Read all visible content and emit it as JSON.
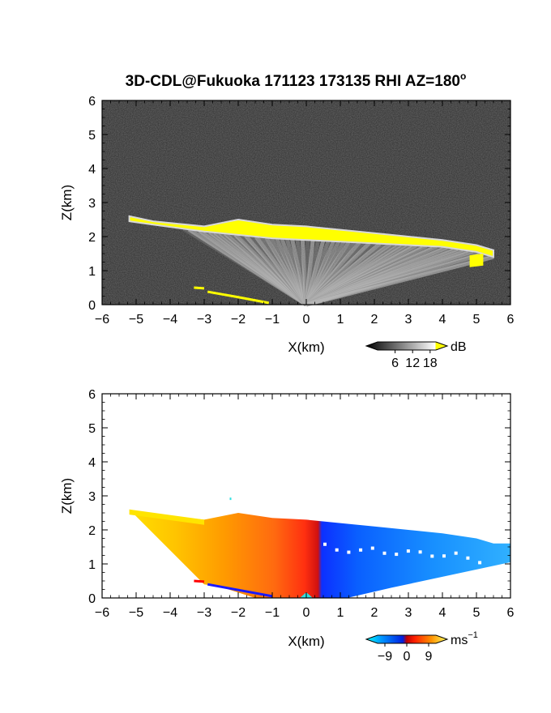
{
  "title": "3D-CDL@Fukuoka 171123 173135 RHI AZ=180",
  "title_degree": "o",
  "chart_data": [
    {
      "type": "heatmap",
      "quantity": "backscatter intensity",
      "xlabel": "X(km)",
      "ylabel": "Z(km)",
      "xlim": [
        -6,
        6
      ],
      "ylim": [
        0,
        6
      ],
      "xticks": [
        "−6",
        "−5",
        "−4",
        "−3",
        "−2",
        "−1",
        "0",
        "1",
        "2",
        "3",
        "4",
        "5",
        "6"
      ],
      "yticks": [
        "0",
        "1",
        "2",
        "3",
        "4",
        "5",
        "6"
      ],
      "background": "#2a2a2a",
      "highlight_color": "#ffff00",
      "colorbar": {
        "unit": "dB",
        "ticks": [
          "6",
          "12",
          "18"
        ],
        "range": [
          0,
          20
        ]
      },
      "cloud_base_km": [
        [
          -5.2,
          2.45
        ],
        [
          -4.5,
          2.35
        ],
        [
          -3,
          2.15
        ],
        [
          -2,
          2.05
        ],
        [
          -1,
          1.95
        ],
        [
          0,
          1.9
        ],
        [
          1,
          1.85
        ],
        [
          2,
          1.8
        ],
        [
          3,
          1.75
        ],
        [
          4,
          1.7
        ],
        [
          5,
          1.55
        ],
        [
          5.5,
          1.4
        ]
      ],
      "cloud_top_km": [
        [
          -5.2,
          2.6
        ],
        [
          -4.5,
          2.45
        ],
        [
          -3,
          2.3
        ],
        [
          -2,
          2.5
        ],
        [
          -1,
          2.35
        ],
        [
          0,
          2.3
        ],
        [
          1,
          2.2
        ],
        [
          2,
          2.1
        ],
        [
          3,
          2.0
        ],
        [
          4,
          1.9
        ],
        [
          5,
          1.75
        ],
        [
          5.5,
          1.6
        ]
      ]
    },
    {
      "type": "heatmap",
      "quantity": "radial velocity",
      "xlabel": "X(km)",
      "ylabel": "Z(km)",
      "xlim": [
        -6,
        6
      ],
      "ylim": [
        0,
        6
      ],
      "xticks": [
        "−6",
        "−5",
        "−4",
        "−3",
        "−2",
        "−1",
        "0",
        "1",
        "2",
        "3",
        "4",
        "5",
        "6"
      ],
      "yticks": [
        "0",
        "1",
        "2",
        "3",
        "4",
        "5",
        "6"
      ],
      "colorbar": {
        "unit": "ms",
        "unit_exp": "−1",
        "ticks": [
          "−9",
          "0",
          "9"
        ],
        "range": [
          -12,
          12
        ]
      },
      "velocity_regions": [
        {
          "x_range": [
            -5.2,
            -3
          ],
          "value": 9
        },
        {
          "x_range": [
            -3,
            -1
          ],
          "value": 6
        },
        {
          "x_range": [
            -1,
            0
          ],
          "value": 3
        },
        {
          "x_range": [
            0,
            2
          ],
          "value": -6
        },
        {
          "x_range": [
            2,
            6
          ],
          "value": -9
        }
      ]
    }
  ]
}
